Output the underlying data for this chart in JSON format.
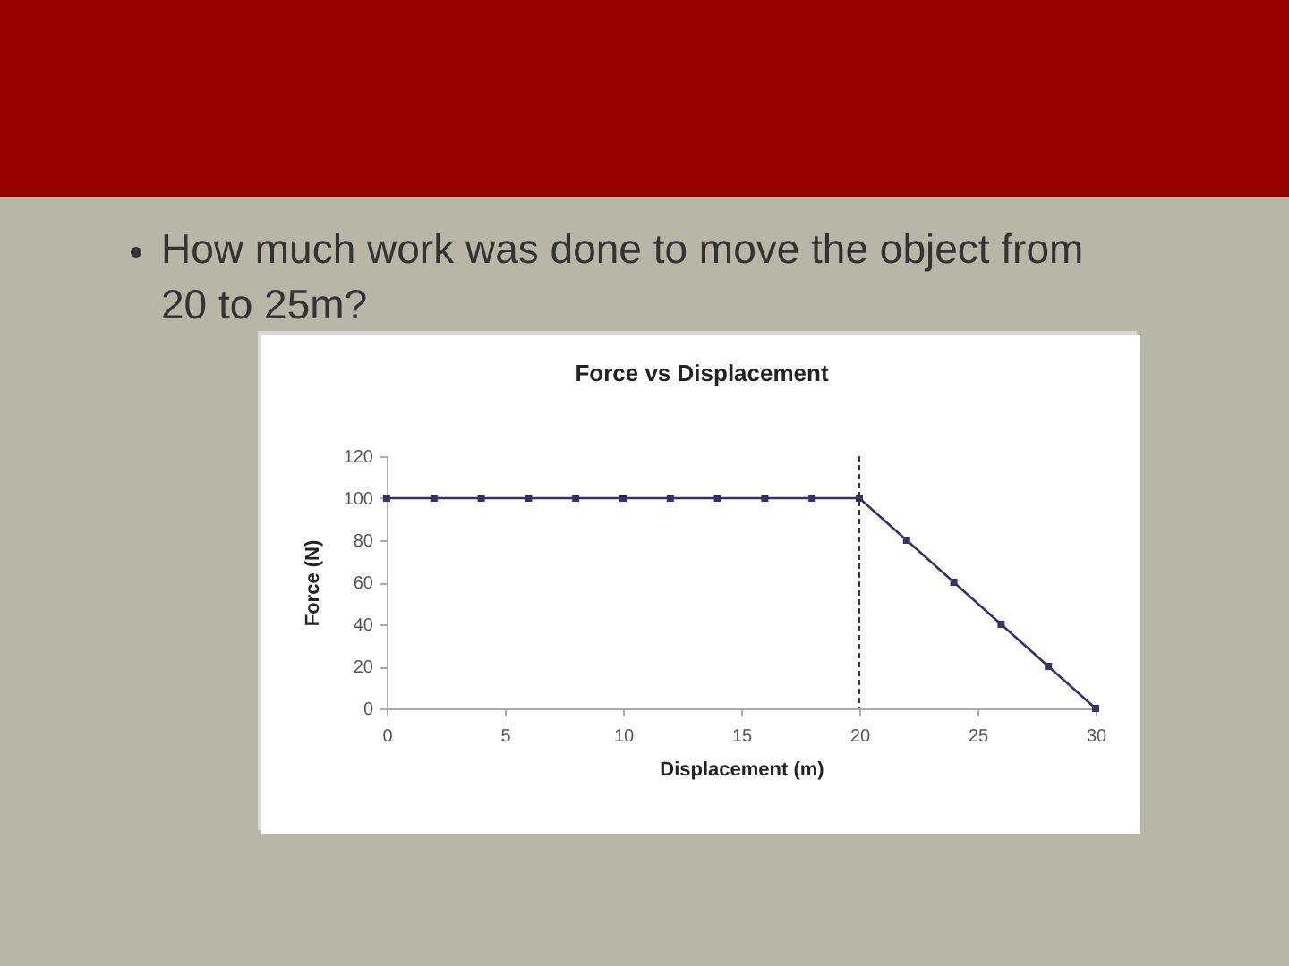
{
  "chart_data": {
    "type": "line",
    "title": "Force vs Displacement",
    "xlabel": "Displacement (m)",
    "ylabel": "Force (N)",
    "annotations": [
      "How much work was done to move the object from 20 to 25m?"
    ],
    "x": [
      0,
      2,
      4,
      6,
      8,
      10,
      12,
      14,
      16,
      18,
      20,
      22,
      24,
      26,
      28,
      30
    ],
    "series": [
      {
        "color": "#333366",
        "values": [
          100,
          100,
          100,
          100,
          100,
          100,
          100,
          100,
          100,
          100,
          100,
          80,
          60,
          40,
          20,
          0
        ]
      }
    ],
    "xlim": [
      0,
      30
    ],
    "xticks": [
      0,
      5,
      10,
      15,
      20,
      25,
      30
    ],
    "ylim": [
      0,
      120
    ],
    "yticks": [
      0,
      20,
      40,
      60,
      80,
      100,
      120
    ],
    "ref_lines": [
      {
        "axis": "x",
        "value": 20,
        "color": "#333333",
        "line_style": "dashed"
      }
    ],
    "marker": "square",
    "line_style": "solid",
    "grid": false,
    "legend": false
  }
}
